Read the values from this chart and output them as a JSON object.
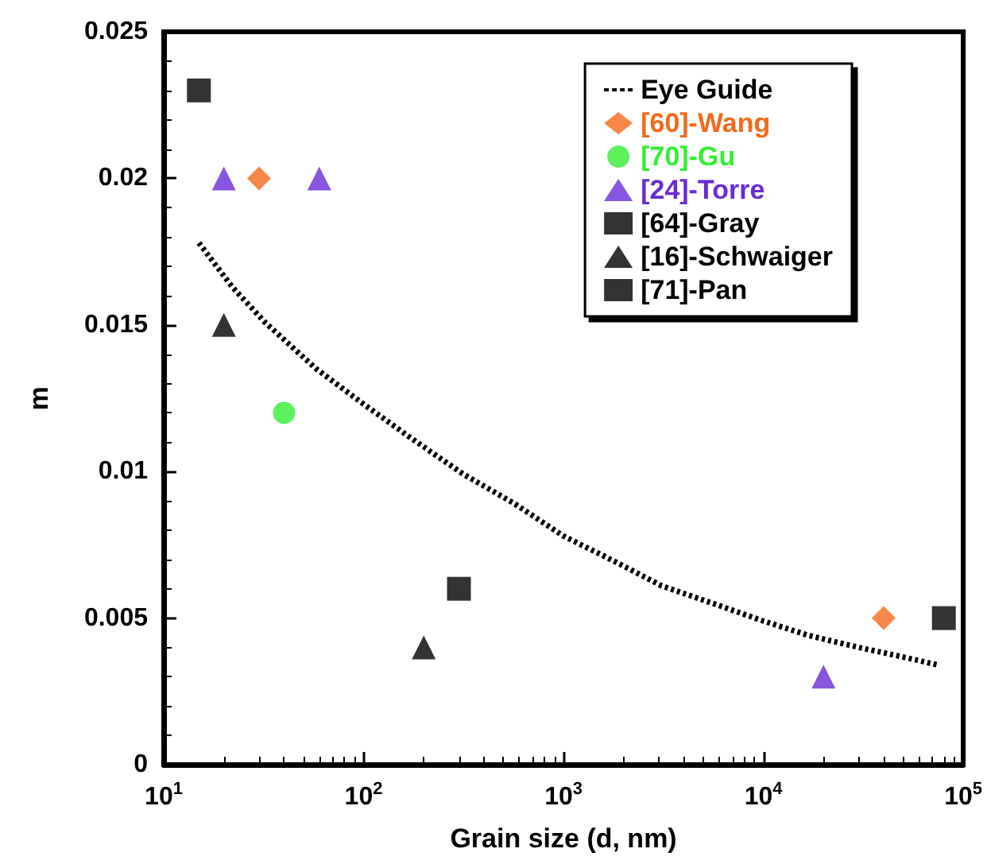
{
  "chart_data": {
    "type": "scatter",
    "xlabel": "Grain size (d, nm)",
    "ylabel": "m",
    "log": "x",
    "xlim": [
      10,
      100000
    ],
    "xticks": [
      {
        "value": 10,
        "label": "10$^{1}$"
      },
      {
        "value": 100,
        "label": "10$^{2}$"
      },
      {
        "value": 1000,
        "label": "10$^{3}$"
      },
      {
        "value": 10000,
        "label": "10$^{4}$"
      },
      {
        "value": 100000,
        "label": "10$^{5}$"
      }
    ],
    "ylim": [
      0,
      0.025
    ],
    "yticks": [
      0,
      0.005,
      0.01,
      0.015,
      0.02,
      0.025
    ],
    "grid": false,
    "legend": "top right",
    "series": [
      {
        "name": "Eye Guide",
        "type": "line",
        "line_style": "dotted",
        "marker": "none",
        "color": "#000000",
        "x": [
          15,
          22,
          32,
          58,
          100,
          176,
          317,
          570,
          1000,
          1845,
          3100,
          5600,
          10000,
          17000,
          30000,
          48000,
          75000
        ],
        "values": [
          0.0178,
          0.0163,
          0.0151,
          0.0135,
          0.0123,
          0.0111,
          0.0099,
          0.0089,
          0.0078,
          0.0069,
          0.0061,
          0.0055,
          0.0049,
          0.0044,
          0.004,
          0.0037,
          0.0034
        ]
      },
      {
        "name": "[60]-Wang",
        "marker": "diamond",
        "color": "#f26a1b",
        "x": [
          30,
          40000
        ],
        "values": [
          0.02,
          0.005
        ]
      },
      {
        "name": "[70]-Gu",
        "marker": "circle",
        "color": "#33ee33",
        "x": [
          40
        ],
        "values": [
          0.012
        ]
      },
      {
        "name": "[24]-Torre",
        "marker": "triangle",
        "color": "#6a2ad8",
        "x": [
          20,
          60,
          20000
        ],
        "values": [
          0.02,
          0.02,
          0.003
        ]
      },
      {
        "name": "[64]-Gray",
        "marker": "square",
        "color": "#000000",
        "x": [
          300
        ],
        "values": [
          0.006
        ]
      },
      {
        "name": "[16]-Schwaiger",
        "marker": "triangle",
        "color": "#000000",
        "x": [
          20,
          200
        ],
        "values": [
          0.015,
          0.004
        ]
      },
      {
        "name": "[71]-Pan",
        "marker": "square",
        "color": "#000000",
        "x": [
          15,
          80000
        ],
        "values": [
          0.023,
          0.005
        ]
      }
    ]
  }
}
